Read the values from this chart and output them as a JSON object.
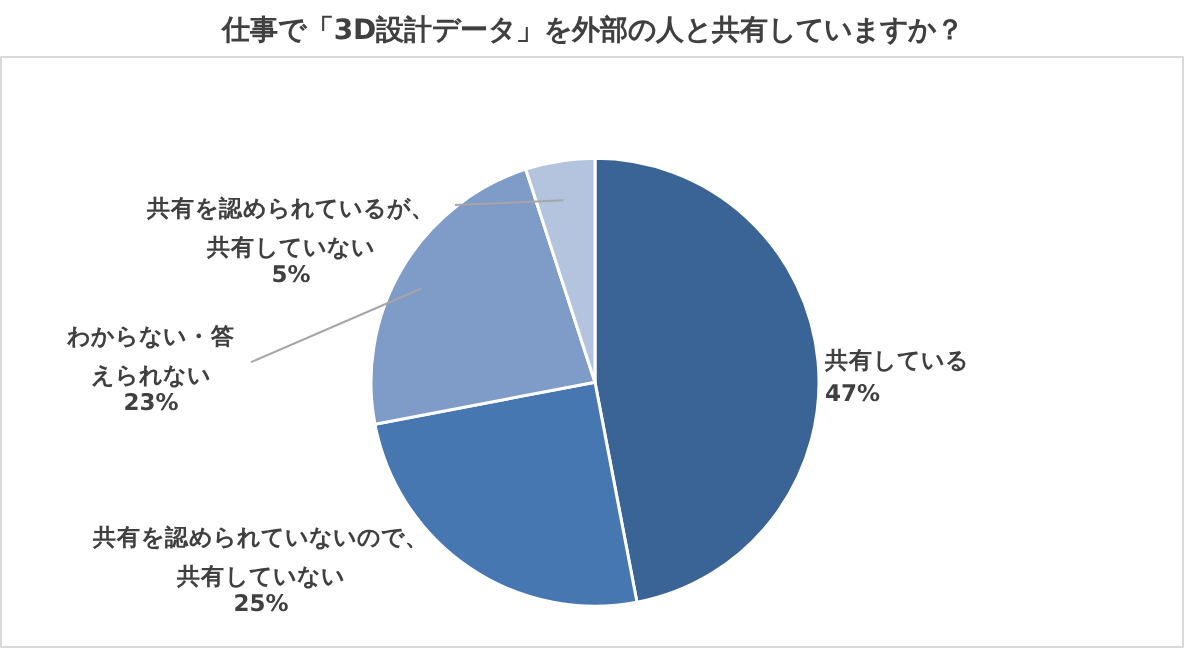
{
  "chart_data": {
    "type": "pie",
    "title": "仕事で「3D設計データ」を外部の人と共有していますか？",
    "categories": [
      "共有している",
      "共有を認められていないので、共有していない",
      "わからない・答えられない",
      "共有を認められているが、共有していない"
    ],
    "values": [
      47,
      25,
      23,
      5
    ],
    "colors": [
      "#3b6496",
      "#4677b1",
      "#7f9bc8",
      "#b4c4df"
    ],
    "value_labels": [
      "47%",
      "25%",
      "23%",
      "5%"
    ]
  }
}
